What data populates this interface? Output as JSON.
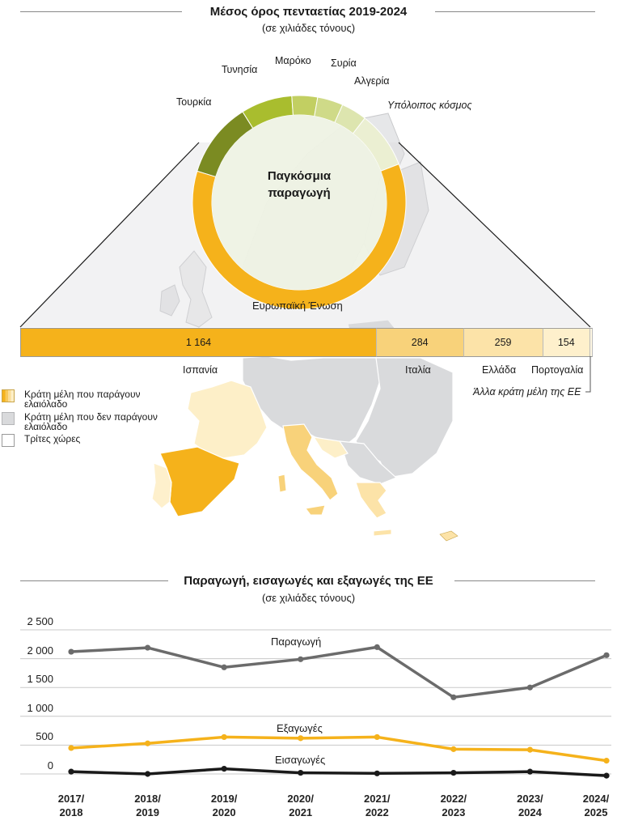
{
  "top": {
    "title": "Μέσος όρος πενταετίας 2019-2024",
    "subtitle": "(σε χιλιάδες τόνους)",
    "center_label_line1": "Παγκόσμια",
    "center_label_line2": "παραγωγή",
    "eu_label": "Ευρωπαϊκή Ένωση"
  },
  "donut_segments": [
    {
      "label": "Τουρκία",
      "color": "#7B8B22",
      "italic": false
    },
    {
      "label": "Τυνησία",
      "color": "#A9BD2E",
      "italic": false
    },
    {
      "label": "Μαρόκο",
      "color": "#C2CF62",
      "italic": false
    },
    {
      "label": "Συρία",
      "color": "#CFDA88",
      "italic": false
    },
    {
      "label": "Αλγερία",
      "color": "#DDE5AF",
      "italic": false
    },
    {
      "label": "Υπόλοιπος κόσμος",
      "color": "#EBEFD2",
      "italic": true
    },
    {
      "label": "",
      "color": "#F5B21B",
      "italic": false
    }
  ],
  "eu_bar": [
    {
      "country": "Ισπανία",
      "value": 1164,
      "value_label": "1 164",
      "color": "#F5B21B"
    },
    {
      "country": "Ιταλία",
      "value": 284,
      "value_label": "284",
      "color": "#F8D27A"
    },
    {
      "country": "Ελλάδα",
      "value": 259,
      "value_label": "259",
      "color": "#FCE3A8"
    },
    {
      "country": "Πορτογαλία",
      "value": 154,
      "value_label": "154",
      "color": "#FEF0CC"
    },
    {
      "country": "Άλλα κράτη μέλη της ΕΕ",
      "value": 8,
      "value_label": "",
      "color": "#FFF8E4"
    }
  ],
  "legend": [
    {
      "line1": "Κράτη μέλη που παράγουν",
      "line2": "ελαιόλαδο",
      "swatch": "prod"
    },
    {
      "line1": "Κράτη μέλη που δεν παράγουν",
      "line2": "ελαιόλαδο",
      "swatch": "non"
    },
    {
      "line1": "Τρίτες χώρες",
      "line2": "",
      "swatch": "third"
    }
  ],
  "colors": {
    "eu_producer": "#F5B21B",
    "eu_non_producer": "#d9dadc",
    "third_country": "#ffffff",
    "production_line": "#6b6b6b",
    "exports_line": "#F5B21B",
    "imports_line": "#1a1a1a"
  },
  "chart_data": {
    "type": "line",
    "title": "Παραγωγή, εισαγωγές και εξαγωγές της ΕΕ",
    "subtitle": "(σε χιλιάδες τόνους)",
    "categories": [
      [
        "2017/",
        "2018"
      ],
      [
        "2018/",
        "2019"
      ],
      [
        "2019/",
        "2020"
      ],
      [
        "2020/",
        "2021"
      ],
      [
        "2021/",
        "2022"
      ],
      [
        "2022/",
        "2023"
      ],
      [
        "2023/",
        "2024"
      ],
      [
        "2024/",
        "2025"
      ]
    ],
    "ylim": [
      0,
      2500
    ],
    "yticks": [
      {
        "v": 0,
        "label": "0"
      },
      {
        "v": 500,
        "label": "500"
      },
      {
        "v": 1000,
        "label": "1 000"
      },
      {
        "v": 1500,
        "label": "1 500"
      },
      {
        "v": 2000,
        "label": "2 000"
      },
      {
        "v": 2500,
        "label": "2 500"
      }
    ],
    "grid": true,
    "series": [
      {
        "name": "Παραγωγή",
        "color": "#6b6b6b",
        "values": [
          2120,
          2190,
          1850,
          1990,
          2200,
          1330,
          1500,
          2060
        ]
      },
      {
        "name": "Εξαγωγές",
        "color": "#F5B21B",
        "values": [
          450,
          530,
          640,
          620,
          640,
          430,
          420,
          230
        ]
      },
      {
        "name": "Εισαγωγές",
        "color": "#1a1a1a",
        "values": [
          40,
          0,
          90,
          20,
          10,
          20,
          40,
          -30
        ]
      }
    ]
  }
}
